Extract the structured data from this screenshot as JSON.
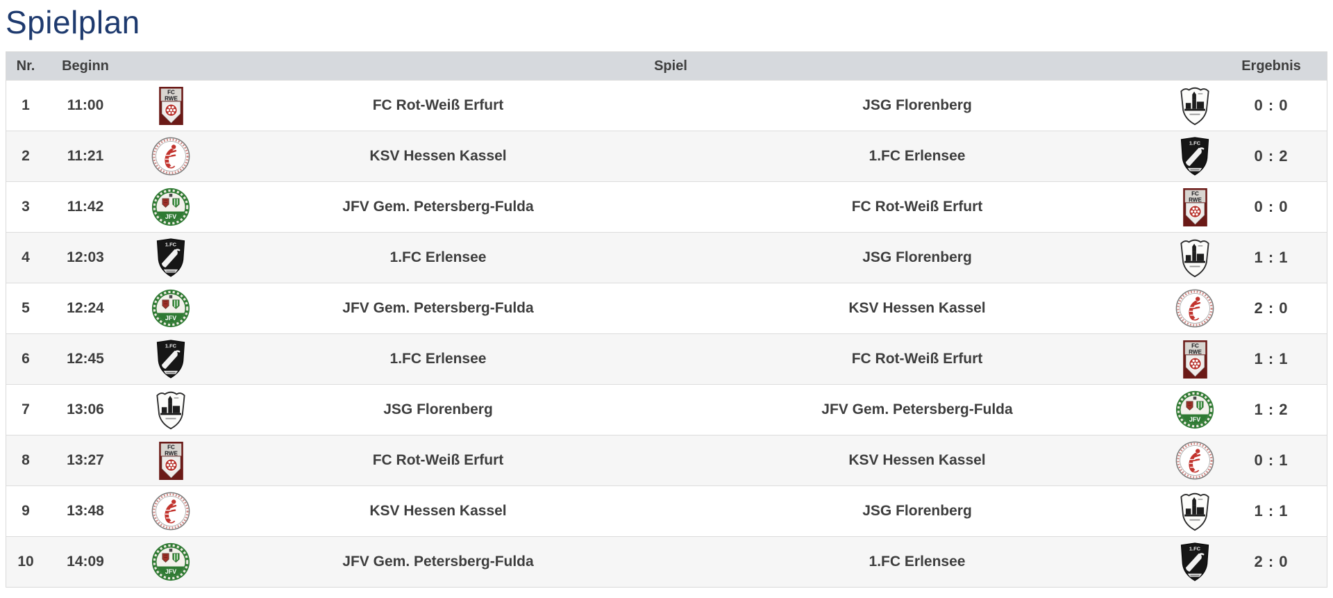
{
  "title": "Spielplan",
  "accent_color": "#1e3a6e",
  "header_bg_color": "#d6d9dd",
  "table": {
    "headers": {
      "nr": "Nr.",
      "beginn": "Beginn",
      "spiel": "Spiel",
      "ergebnis": "Ergebnis"
    },
    "teams": {
      "fcrwe": {
        "name": "FC Rot-Weiß Erfurt",
        "icon": "fc-rot-weiss-erfurt-crest-icon"
      },
      "ksv": {
        "name": "KSV Hessen Kassel",
        "icon": "ksv-hessen-kassel-crest-icon"
      },
      "jfv": {
        "name": "JFV Gem. Petersberg-Fulda",
        "icon": "jfv-petersberg-fulda-crest-icon"
      },
      "erlensee": {
        "name": "1.FC Erlensee",
        "icon": "fc-erlensee-crest-icon"
      },
      "florenberg": {
        "name": "JSG Florenberg",
        "icon": "jsg-florenberg-crest-icon"
      }
    },
    "rows": [
      {
        "nr": "1",
        "time": "11:00",
        "home": "fcrwe",
        "away": "florenberg",
        "score": "0 : 0"
      },
      {
        "nr": "2",
        "time": "11:21",
        "home": "ksv",
        "away": "erlensee",
        "score": "0 : 2"
      },
      {
        "nr": "3",
        "time": "11:42",
        "home": "jfv",
        "away": "fcrwe",
        "score": "0 : 0"
      },
      {
        "nr": "4",
        "time": "12:03",
        "home": "erlensee",
        "away": "florenberg",
        "score": "1 : 1"
      },
      {
        "nr": "5",
        "time": "12:24",
        "home": "jfv",
        "away": "ksv",
        "score": "2 : 0"
      },
      {
        "nr": "6",
        "time": "12:45",
        "home": "erlensee",
        "away": "fcrwe",
        "score": "1 : 1"
      },
      {
        "nr": "7",
        "time": "13:06",
        "home": "florenberg",
        "away": "jfv",
        "score": "1 : 2"
      },
      {
        "nr": "8",
        "time": "13:27",
        "home": "fcrwe",
        "away": "ksv",
        "score": "0 : 1"
      },
      {
        "nr": "9",
        "time": "13:48",
        "home": "ksv",
        "away": "florenberg",
        "score": "1 : 1"
      },
      {
        "nr": "10",
        "time": "14:09",
        "home": "jfv",
        "away": "erlensee",
        "score": "2 : 0"
      }
    ]
  }
}
